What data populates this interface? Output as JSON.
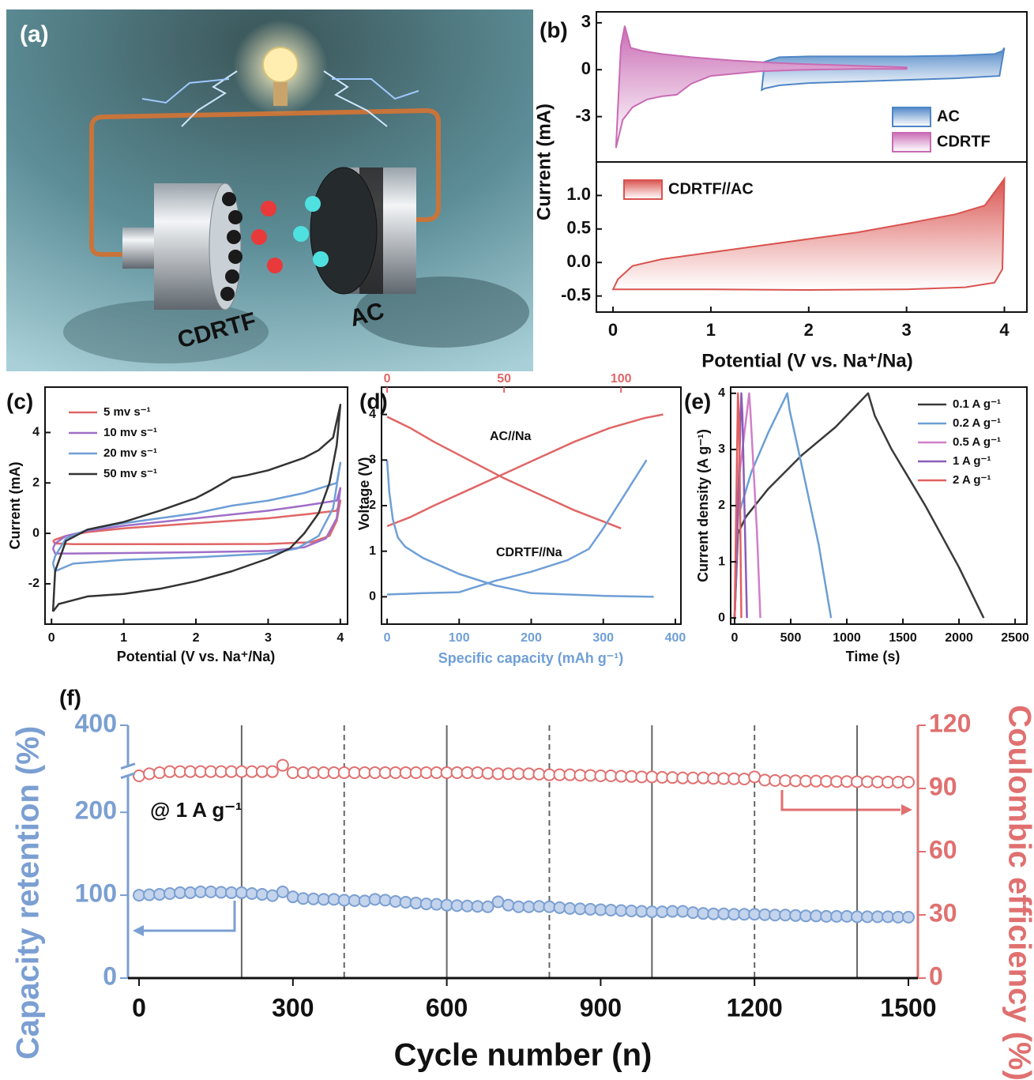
{
  "chart_data": [
    {
      "type": "illustration",
      "panel_label": "(a)",
      "labels": [
        "CDRTF",
        "AC"
      ]
    },
    {
      "type": "area",
      "panel_label": "(b)",
      "ylabel": "Current (mA)",
      "xlim": [
        -0.17,
        4.23
      ],
      "ylim": [
        -5.9,
        3.7
      ],
      "yticks": [
        -3,
        0,
        3
      ],
      "legend": "lower right",
      "series": [
        {
          "name": "AC",
          "color": "#4f86c6",
          "x": [
            1.52,
            1.55,
            1.7,
            2,
            2.5,
            3,
            3.5,
            3.9,
            3.98,
            4.0,
            3.95,
            3.5,
            3,
            2.5,
            2,
            1.7,
            1.55,
            1.52
          ],
          "values": [
            -1.3,
            0.5,
            0.8,
            0.85,
            0.85,
            0.85,
            0.9,
            1.0,
            1.2,
            1.4,
            -0.4,
            -0.55,
            -0.65,
            -0.75,
            -0.85,
            -1.0,
            -1.2,
            -1.3
          ]
        },
        {
          "name": "CDRTF",
          "color": "#c96bb4",
          "x": [
            0.03,
            0.08,
            0.12,
            0.18,
            0.3,
            0.5,
            0.8,
            1.2,
            1.6,
            2,
            2.5,
            3,
            3,
            2.5,
            2,
            1.5,
            1,
            0.8,
            0.65,
            0.5,
            0.35,
            0.2,
            0.1,
            0.03
          ],
          "values": [
            -5.0,
            1.5,
            2.8,
            1.4,
            1.2,
            1.0,
            0.8,
            0.6,
            0.45,
            0.35,
            0.25,
            0.15,
            0.05,
            0.05,
            0.0,
            -0.1,
            -0.4,
            -0.9,
            -1.6,
            -1.7,
            -1.9,
            -2.4,
            -3.2,
            -5.0
          ]
        }
      ]
    },
    {
      "type": "area",
      "xlabel": "Potential (V vs. Na⁺/Na)",
      "xlim": [
        -0.17,
        4.23
      ],
      "ylim": [
        -0.74,
        1.5
      ],
      "xticks": [
        0,
        1,
        2,
        3,
        4
      ],
      "yticks": [
        -0.5,
        {
          "value": 0,
          "label": "0.0"
        },
        0.5,
        {
          "value": 1,
          "label": "1.0"
        }
      ],
      "legend": "upper left",
      "series": [
        {
          "name": "CDRTF//AC",
          "color": "#d9534f",
          "x": [
            0,
            0.5,
            1,
            2,
            3,
            3.6,
            3.9,
            3.98,
            4.0,
            3.8,
            3.5,
            3,
            2.5,
            2,
            1.5,
            1,
            0.5,
            0.2,
            0.05,
            0
          ],
          "values": [
            -0.4,
            -0.4,
            -0.4,
            -0.41,
            -0.4,
            -0.37,
            -0.3,
            -0.1,
            1.25,
            0.85,
            0.72,
            0.58,
            0.45,
            0.35,
            0.25,
            0.15,
            0.05,
            -0.05,
            -0.25,
            -0.4
          ]
        }
      ]
    },
    {
      "type": "line",
      "panel_label": "(c)",
      "ylabel": "Current (mA)",
      "xlabel": "Potential (V vs. Na⁺/Na)",
      "xlim": [
        -0.09,
        4.1
      ],
      "ylim": [
        -3.6,
        5.8
      ],
      "xticks": [
        0,
        1,
        2,
        3,
        4
      ],
      "yticks": [
        -2,
        0,
        2,
        4
      ],
      "legend": "upper left",
      "series": [
        {
          "name": "5 mv s⁻¹",
          "color": "#e06666",
          "x": [
            0.02,
            0.05,
            0.3,
            1,
            2,
            3,
            3.6,
            3.85,
            3.95,
            4.0,
            3.95,
            3.5,
            3,
            2,
            1,
            0.5,
            0.2,
            0.05,
            0.02
          ],
          "values": [
            -0.3,
            -0.4,
            -0.43,
            -0.43,
            -0.43,
            -0.42,
            -0.35,
            -0.1,
            0.5,
            1.3,
            0.9,
            0.75,
            0.6,
            0.4,
            0.2,
            0.05,
            -0.1,
            -0.25,
            -0.3
          ]
        },
        {
          "name": "10 mv s⁻¹",
          "color": "#9f6fc8",
          "x": [
            0.02,
            0.05,
            0.3,
            1,
            2,
            3,
            3.5,
            3.8,
            3.95,
            4.0,
            3.95,
            3.5,
            3,
            2,
            1,
            0.5,
            0.2,
            0.05,
            0.02
          ],
          "values": [
            -0.6,
            -0.8,
            -0.8,
            -0.78,
            -0.75,
            -0.7,
            -0.55,
            -0.2,
            0.6,
            1.8,
            1.3,
            1.1,
            0.9,
            0.6,
            0.3,
            0.1,
            -0.1,
            -0.4,
            -0.6
          ]
        },
        {
          "name": "20 mv s⁻¹",
          "color": "#6f9fd6",
          "x": [
            0.02,
            0.05,
            0.3,
            1,
            2,
            3,
            3.4,
            3.7,
            3.9,
            4.0,
            3.95,
            3.5,
            3,
            2.5,
            2,
            1,
            0.5,
            0.2,
            0.05,
            0.02
          ],
          "values": [
            -1.2,
            -1.5,
            -1.2,
            -1.05,
            -0.95,
            -0.8,
            -0.6,
            -0.1,
            1.0,
            2.8,
            2.0,
            1.6,
            1.3,
            1.1,
            0.8,
            0.4,
            0.15,
            -0.2,
            -0.9,
            -1.2
          ]
        },
        {
          "name": "50 mv s⁻¹",
          "color": "#333333",
          "x": [
            0.02,
            0.1,
            0.5,
            1,
            1.5,
            2,
            2.5,
            3,
            3.3,
            3.5,
            3.7,
            3.85,
            3.95,
            4.0,
            3.9,
            3.7,
            3.5,
            3,
            2.7,
            2.5,
            2.2,
            2,
            1.5,
            1,
            0.5,
            0.2,
            0.05,
            0.02
          ],
          "values": [
            -3.1,
            -2.8,
            -2.5,
            -2.4,
            -2.2,
            -1.9,
            -1.5,
            -1.0,
            -0.6,
            0,
            0.8,
            2.0,
            3.5,
            5.1,
            3.8,
            3.3,
            3.0,
            2.5,
            2.3,
            2.2,
            1.7,
            1.4,
            0.9,
            0.45,
            0.15,
            -0.3,
            -1.5,
            -3.1
          ]
        }
      ]
    },
    {
      "type": "line",
      "panel_label": "(d)",
      "ylabel": "Voltage (V)",
      "xlabel": "Specific capacity (mAh g⁻¹)",
      "xlim": [
        -7.7,
        407.7
      ],
      "x2lim": [
        -2.4,
        125.6
      ],
      "ylim": [
        -0.6,
        4.6
      ],
      "xticks": [
        0,
        100,
        200,
        300,
        400
      ],
      "x2ticks": [
        0,
        50,
        100
      ],
      "yticks": [
        0,
        1,
        2,
        3,
        4
      ],
      "annotations": [
        "AC//Na",
        "CDRTF//Na"
      ],
      "series": [
        {
          "color": "#e06666",
          "axis": "x2",
          "x": [
            0,
            10,
            20,
            35,
            50,
            65,
            80,
            95,
            110,
            118
          ],
          "values": [
            1.55,
            1.75,
            2.0,
            2.35,
            2.7,
            3.05,
            3.4,
            3.7,
            3.92,
            4.0
          ]
        },
        {
          "color": "#e06666",
          "axis": "x2",
          "x": [
            0,
            10,
            20,
            35,
            50,
            65,
            80,
            90,
            100
          ],
          "values": [
            3.95,
            3.7,
            3.4,
            3.0,
            2.6,
            2.25,
            1.9,
            1.7,
            1.5
          ]
        },
        {
          "color": "#6f9fd6",
          "x": [
            0,
            3,
            8,
            15,
            25,
            50,
            100,
            150,
            200,
            300,
            370
          ],
          "values": [
            3.0,
            2.3,
            1.7,
            1.3,
            1.1,
            0.85,
            0.5,
            0.25,
            0.08,
            0.02,
            0.0
          ]
        },
        {
          "color": "#6f9fd6",
          "x": [
            0,
            50,
            100,
            110,
            150,
            200,
            250,
            280,
            300,
            320,
            340,
            360
          ],
          "values": [
            0.05,
            0.08,
            0.1,
            0.15,
            0.35,
            0.55,
            0.8,
            1.05,
            1.5,
            2.0,
            2.5,
            3.0
          ]
        }
      ]
    },
    {
      "type": "line",
      "panel_label": "(e)",
      "ylabel": "Current density (A g⁻¹)",
      "xlabel": "Time (s)",
      "xlim": [
        -35,
        2605
      ],
      "ylim": [
        -0.11,
        4.11
      ],
      "xticks": [
        0,
        500,
        1000,
        1500,
        2000,
        2500
      ],
      "yticks": [
        0,
        1,
        2,
        3,
        4
      ],
      "legend": "upper right",
      "series": [
        {
          "name": "0.1 A g⁻¹",
          "color": "#3a3a3a",
          "x": [
            0,
            30,
            100,
            300,
            600,
            900,
            1190,
            1250,
            1400,
            1700,
            2000,
            2220
          ],
          "values": [
            0,
            1.5,
            1.8,
            2.3,
            2.9,
            3.4,
            4.0,
            3.6,
            3.0,
            2.0,
            0.9,
            0
          ]
        },
        {
          "name": "0.2 A g⁻¹",
          "color": "#6b9fd4",
          "x": [
            0,
            30,
            150,
            300,
            470,
            490,
            600,
            750,
            860
          ],
          "values": [
            0,
            1.8,
            2.6,
            3.3,
            4.0,
            3.7,
            2.7,
            1.3,
            0
          ]
        },
        {
          "name": "0.5 A g⁻¹",
          "color": "#d080c8",
          "x": [
            0,
            40,
            130,
            140,
            200,
            230
          ],
          "values": [
            0,
            2.5,
            4.0,
            3.7,
            1.5,
            0
          ]
        },
        {
          "name": "1 A g⁻¹",
          "color": "#8a5cb8",
          "x": [
            0,
            60,
            70,
            110
          ],
          "values": [
            0,
            4,
            3.6,
            0
          ]
        },
        {
          "name": "2 A g⁻¹",
          "color": "#e06060",
          "x": [
            0,
            30,
            40,
            60
          ],
          "values": [
            0,
            4,
            3.5,
            0
          ]
        }
      ]
    },
    {
      "type": "scatter",
      "panel_label": "(f)",
      "ylabel": "Capacity retention (%)",
      "y2label": "Coulombic efficiency (%)",
      "xlabel": "Cycle number (n)",
      "annotations": [
        "@ 1 A g⁻¹"
      ],
      "xlim": [
        -21.6,
        1518.5
      ],
      "ylim": [
        0,
        400
      ],
      "ybreak": [
        250,
        345
      ],
      "y2lim": [
        0,
        120
      ],
      "xticks": [
        0,
        300,
        600,
        900,
        1200,
        1500
      ],
      "yticks": [
        0,
        100,
        200,
        400
      ],
      "y2ticks": [
        0,
        30,
        60,
        90,
        120
      ],
      "vlines_solid": [
        200,
        600,
        1000,
        1400
      ],
      "vlines_dashed": [
        400,
        800,
        1200
      ],
      "series": [
        {
          "color": "#7b9fd2",
          "x": [
            0,
            20,
            40,
            60,
            80,
            100,
            120,
            140,
            160,
            180,
            200,
            220,
            240,
            260,
            280,
            300,
            320,
            340,
            360,
            380,
            400,
            420,
            440,
            460,
            480,
            500,
            520,
            540,
            560,
            580,
            600,
            620,
            640,
            660,
            680,
            700,
            720,
            740,
            760,
            780,
            800,
            820,
            840,
            860,
            880,
            900,
            920,
            940,
            960,
            980,
            1000,
            1020,
            1040,
            1060,
            1080,
            1100,
            1120,
            1140,
            1160,
            1180,
            1200,
            1220,
            1240,
            1260,
            1280,
            1300,
            1320,
            1340,
            1360,
            1380,
            1400,
            1420,
            1440,
            1460,
            1480,
            1500
          ],
          "values": [
            100,
            100.5,
            101,
            102,
            103,
            103,
            104,
            104,
            103.5,
            103,
            103,
            102,
            101,
            99.5,
            104,
            98,
            96,
            95.5,
            95,
            95,
            94,
            93.5,
            93,
            95,
            94,
            92.5,
            91.5,
            90.5,
            89.5,
            89,
            88,
            87.5,
            87,
            86.5,
            86,
            92,
            88,
            86,
            86,
            86.5,
            86,
            85,
            84,
            83.5,
            83,
            82.5,
            82,
            81.5,
            81,
            80.5,
            80,
            80,
            80.5,
            80.5,
            79,
            78,
            77.5,
            77.5,
            77,
            77,
            77,
            76.5,
            76,
            76,
            75.5,
            75,
            75,
            74.5,
            74.5,
            74.5,
            74,
            74,
            74,
            74,
            73.5,
            73.5
          ]
        },
        {
          "color": "#e07070",
          "axis": "y2",
          "x": [
            0,
            20,
            40,
            60,
            80,
            100,
            120,
            140,
            160,
            180,
            200,
            220,
            240,
            260,
            280,
            300,
            320,
            340,
            360,
            380,
            400,
            420,
            440,
            460,
            480,
            500,
            520,
            540,
            560,
            580,
            600,
            620,
            640,
            660,
            680,
            700,
            720,
            740,
            760,
            780,
            800,
            820,
            840,
            860,
            880,
            900,
            920,
            940,
            960,
            980,
            1000,
            1020,
            1040,
            1060,
            1080,
            1100,
            1120,
            1140,
            1160,
            1180,
            1200,
            1220,
            1240,
            1260,
            1280,
            1300,
            1320,
            1340,
            1360,
            1380,
            1400,
            1420,
            1440,
            1460,
            1480,
            1500
          ],
          "values": [
            96,
            97,
            97.5,
            98,
            98,
            98,
            98,
            98,
            98,
            98,
            98,
            98,
            98,
            98,
            101,
            97.5,
            97.5,
            97.5,
            97.5,
            97.5,
            97.5,
            97.5,
            97.5,
            97.5,
            97.5,
            97.5,
            97.5,
            97.5,
            97.5,
            97.5,
            97.5,
            97.5,
            97.5,
            97.5,
            97.2,
            97,
            97,
            97,
            97,
            96.8,
            96.5,
            96.5,
            96.5,
            96.3,
            96.2,
            96,
            96,
            95.8,
            95.7,
            95.5,
            95.5,
            95.3,
            95.2,
            95,
            95,
            95,
            94.8,
            94.7,
            94.6,
            94.5,
            95.5,
            94,
            93.8,
            93.7,
            93.6,
            93.5,
            93.5,
            93.4,
            93.3,
            93.3,
            93.2,
            93.2,
            93.1,
            93,
            93,
            93
          ]
        }
      ]
    }
  ]
}
